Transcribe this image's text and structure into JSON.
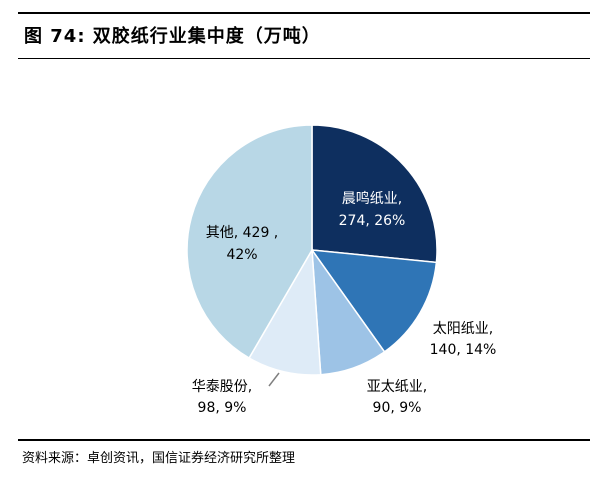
{
  "header": {
    "title": "图 74:  双胶纸行业集中度（万吨）"
  },
  "footer": {
    "source": "资料来源：卓创资讯，国信证券经济研究所整理"
  },
  "colors": {
    "slice_0": "#0e2f5f",
    "slice_1": "#2f75b6",
    "slice_2": "#9dc3e6",
    "slice_3": "#deebf7",
    "slice_4": "#b8d7e6",
    "leader_line": "#7f7f7f"
  },
  "chart_data": {
    "type": "pie",
    "title": "",
    "slices": [
      {
        "name": "晨鸣纸业",
        "value": 274,
        "percent": "26%",
        "label_line1": "晨鸣纸业,",
        "label_line2": "274, 26%"
      },
      {
        "name": "太阳纸业",
        "value": 140,
        "percent": "14%",
        "label_line1": "太阳纸业,",
        "label_line2": "140, 14%"
      },
      {
        "name": "亚太纸业",
        "value": 90,
        "percent": "9%",
        "label_line1": "亚太纸业,",
        "label_line2": "90, 9%"
      },
      {
        "name": "华泰股份",
        "value": 98,
        "percent": "9%",
        "label_line1": "华泰股份,",
        "label_line2": "98, 9%"
      },
      {
        "name": "其他",
        "value": 429,
        "percent": "42%",
        "label_line1": "其他, 429 ,",
        "label_line2": "42%"
      }
    ],
    "start_angle": "12 o'clock",
    "direction": "clockwise",
    "legend": "none"
  }
}
